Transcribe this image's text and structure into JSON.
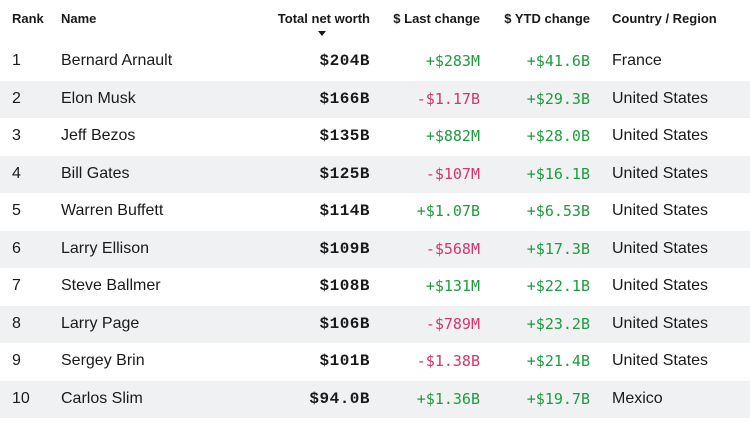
{
  "table": {
    "headers": {
      "rank": "Rank",
      "name": "Name",
      "net_worth": "Total net worth",
      "last_change": "$ Last change",
      "ytd_change": "$ YTD change",
      "country": "Country / Region"
    },
    "sort": {
      "column": "Total net worth",
      "direction": "descending",
      "icon": "sort-down-arrow-icon"
    },
    "colors": {
      "positive": "#1f9b3d",
      "negative": "#d8336b",
      "row_stripe": "#f0f1f3"
    },
    "rows": [
      {
        "rank": "1",
        "name": "Bernard Arnault",
        "net_worth": "$204B",
        "last_change": "+$283M",
        "last_sign": "pos",
        "ytd_change": "+$41.6B",
        "ytd_sign": "pos",
        "country": "France"
      },
      {
        "rank": "2",
        "name": "Elon Musk",
        "net_worth": "$166B",
        "last_change": "-$1.17B",
        "last_sign": "neg",
        "ytd_change": "+$29.3B",
        "ytd_sign": "pos",
        "country": "United States"
      },
      {
        "rank": "3",
        "name": "Jeff Bezos",
        "net_worth": "$135B",
        "last_change": "+$882M",
        "last_sign": "pos",
        "ytd_change": "+$28.0B",
        "ytd_sign": "pos",
        "country": "United States"
      },
      {
        "rank": "4",
        "name": "Bill Gates",
        "net_worth": "$125B",
        "last_change": "-$107M",
        "last_sign": "neg",
        "ytd_change": "+$16.1B",
        "ytd_sign": "pos",
        "country": "United States"
      },
      {
        "rank": "5",
        "name": "Warren Buffett",
        "net_worth": "$114B",
        "last_change": "+$1.07B",
        "last_sign": "pos",
        "ytd_change": "+$6.53B",
        "ytd_sign": "pos",
        "country": "United States"
      },
      {
        "rank": "6",
        "name": "Larry Ellison",
        "net_worth": "$109B",
        "last_change": "-$568M",
        "last_sign": "neg",
        "ytd_change": "+$17.3B",
        "ytd_sign": "pos",
        "country": "United States"
      },
      {
        "rank": "7",
        "name": "Steve Ballmer",
        "net_worth": "$108B",
        "last_change": "+$131M",
        "last_sign": "pos",
        "ytd_change": "+$22.1B",
        "ytd_sign": "pos",
        "country": "United States"
      },
      {
        "rank": "8",
        "name": "Larry Page",
        "net_worth": "$106B",
        "last_change": "-$789M",
        "last_sign": "neg",
        "ytd_change": "+$23.2B",
        "ytd_sign": "pos",
        "country": "United States"
      },
      {
        "rank": "9",
        "name": "Sergey Brin",
        "net_worth": "$101B",
        "last_change": "-$1.38B",
        "last_sign": "neg",
        "ytd_change": "+$21.4B",
        "ytd_sign": "pos",
        "country": "United States"
      },
      {
        "rank": "10",
        "name": "Carlos Slim",
        "net_worth": "$94.0B",
        "last_change": "+$1.36B",
        "last_sign": "pos",
        "ytd_change": "+$19.7B",
        "ytd_sign": "pos",
        "country": "Mexico"
      }
    ]
  }
}
